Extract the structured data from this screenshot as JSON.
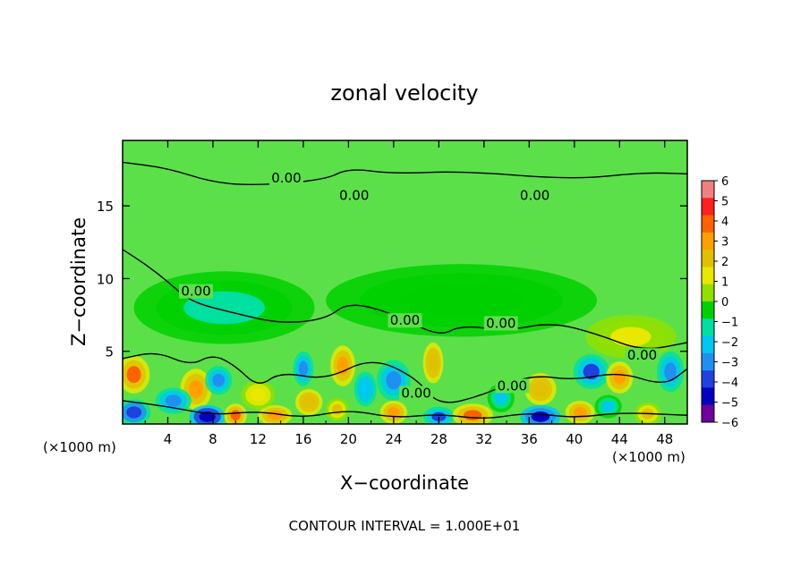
{
  "chart_data": {
    "type": "heatmap",
    "title": "zonal velocity",
    "xlabel": "X−coordinate",
    "ylabel": "Z−coordinate",
    "x_unit_left": "(×1000 m)",
    "x_unit_right": "(×1000 m)",
    "footer": "CONTOUR INTERVAL = 1.000E+01",
    "xlim": [
      0,
      50
    ],
    "ylim": [
      0,
      19.5
    ],
    "x_ticks": [
      4,
      8,
      12,
      16,
      20,
      24,
      28,
      32,
      36,
      40,
      44,
      48
    ],
    "x_tick_labels": [
      "4",
      "8",
      "12",
      "16",
      "20",
      "24",
      "28",
      "32",
      "36",
      "40",
      "44",
      "48"
    ],
    "y_ticks": [
      5,
      10,
      15
    ],
    "y_tick_labels": [
      "5",
      "10",
      "15"
    ],
    "colorbar": {
      "min": -6,
      "max": 6,
      "ticks": [
        6,
        5,
        4,
        3,
        2,
        1,
        0,
        -1,
        -2,
        -3,
        -4,
        -5,
        -6
      ],
      "tick_labels": [
        "6",
        "5",
        "4",
        "3",
        "2",
        "1",
        "0",
        "−1",
        "−2",
        "−3",
        "−4",
        "−5",
        "−6"
      ],
      "colors": [
        "#f08080",
        "#ff2020",
        "#ff6000",
        "#ffa000",
        "#e0c000",
        "#e8e800",
        "#90e000",
        "#00d000",
        "#00e0a0",
        "#00c8f0",
        "#2090f0",
        "#2040e0",
        "#0000c0",
        "#7000a0"
      ]
    },
    "contour_labels": [
      {
        "text": "0.00",
        "x": 14.5,
        "y": 16.8
      },
      {
        "text": "0.00",
        "x": 20.5,
        "y": 15.6
      },
      {
        "text": "0.00",
        "x": 36.5,
        "y": 15.6
      },
      {
        "text": "0.00",
        "x": 6.5,
        "y": 9.0
      },
      {
        "text": "0.00",
        "x": 25.0,
        "y": 7.0
      },
      {
        "text": "0.00",
        "x": 33.5,
        "y": 6.8
      },
      {
        "text": "0.00",
        "x": 46.0,
        "y": 4.6
      },
      {
        "text": "0.00",
        "x": 26.0,
        "y": 2.0
      },
      {
        "text": "0.00",
        "x": 34.5,
        "y": 2.5
      }
    ],
    "blobs": [
      {
        "x": 1.0,
        "y": 3.4,
        "v": 3.5,
        "rx": 1.4,
        "ry": 1.3
      },
      {
        "x": 6.5,
        "y": 2.4,
        "v": 3.0,
        "rx": 1.4,
        "ry": 1.4
      },
      {
        "x": 8.5,
        "y": 3.0,
        "v": -3.0,
        "rx": 1.2,
        "ry": 1.0
      },
      {
        "x": 4.5,
        "y": 1.6,
        "v": -3.0,
        "rx": 1.6,
        "ry": 0.9
      },
      {
        "x": 1.0,
        "y": 0.8,
        "v": -4.0,
        "rx": 1.5,
        "ry": 0.9
      },
      {
        "x": 7.5,
        "y": 0.5,
        "v": -5.0,
        "rx": 1.6,
        "ry": 0.8
      },
      {
        "x": 10.0,
        "y": 0.6,
        "v": 3.5,
        "rx": 1.0,
        "ry": 0.8
      },
      {
        "x": 13.5,
        "y": 0.6,
        "v": 3.0,
        "rx": 1.5,
        "ry": 0.7
      },
      {
        "x": 16.0,
        "y": 3.8,
        "v": -3.0,
        "rx": 0.9,
        "ry": 1.2
      },
      {
        "x": 16.5,
        "y": 1.5,
        "v": 2.5,
        "rx": 1.2,
        "ry": 0.9
      },
      {
        "x": 19.5,
        "y": 4.0,
        "v": 3.0,
        "rx": 1.1,
        "ry": 1.4
      },
      {
        "x": 19.0,
        "y": 1.0,
        "v": 2.0,
        "rx": 1.0,
        "ry": 0.8
      },
      {
        "x": 21.5,
        "y": 2.4,
        "v": -2.5,
        "rx": 1.0,
        "ry": 1.2
      },
      {
        "x": 24.0,
        "y": 3.0,
        "v": -3.0,
        "rx": 1.5,
        "ry": 1.4
      },
      {
        "x": 24.0,
        "y": 0.8,
        "v": 3.0,
        "rx": 1.2,
        "ry": 0.8
      },
      {
        "x": 27.5,
        "y": 4.2,
        "v": 2.5,
        "rx": 0.9,
        "ry": 1.4
      },
      {
        "x": 28.0,
        "y": 0.5,
        "v": -3.5,
        "rx": 1.4,
        "ry": 0.7
      },
      {
        "x": 31.0,
        "y": 0.6,
        "v": 3.5,
        "rx": 1.8,
        "ry": 0.8
      },
      {
        "x": 33.5,
        "y": 1.8,
        "v": -2.0,
        "rx": 1.2,
        "ry": 1.0
      },
      {
        "x": 37.0,
        "y": 2.4,
        "v": 2.5,
        "rx": 1.4,
        "ry": 1.1
      },
      {
        "x": 37.0,
        "y": 0.5,
        "v": -4.5,
        "rx": 1.8,
        "ry": 0.8
      },
      {
        "x": 40.5,
        "y": 0.8,
        "v": 3.0,
        "rx": 1.3,
        "ry": 0.8
      },
      {
        "x": 41.5,
        "y": 3.6,
        "v": -3.5,
        "rx": 1.6,
        "ry": 1.2
      },
      {
        "x": 44.0,
        "y": 3.2,
        "v": 3.0,
        "rx": 1.2,
        "ry": 1.1
      },
      {
        "x": 43.0,
        "y": 1.2,
        "v": -2.0,
        "rx": 1.2,
        "ry": 0.8
      },
      {
        "x": 46.5,
        "y": 0.7,
        "v": 2.0,
        "rx": 1.2,
        "ry": 0.8
      },
      {
        "x": 48.5,
        "y": 3.6,
        "v": -3.0,
        "rx": 1.2,
        "ry": 1.4
      },
      {
        "x": 12.0,
        "y": 2.0,
        "v": 1.5,
        "rx": 1.5,
        "ry": 1.0
      },
      {
        "x": 9.0,
        "y": 8.0,
        "v": -1.0,
        "rx": 8.0,
        "ry": 2.5
      },
      {
        "x": 30.0,
        "y": 8.5,
        "v": -0.8,
        "rx": 12.0,
        "ry": 2.5
      },
      {
        "x": 45.0,
        "y": 6.0,
        "v": 1.0,
        "rx": 4.0,
        "ry": 1.5
      }
    ]
  }
}
